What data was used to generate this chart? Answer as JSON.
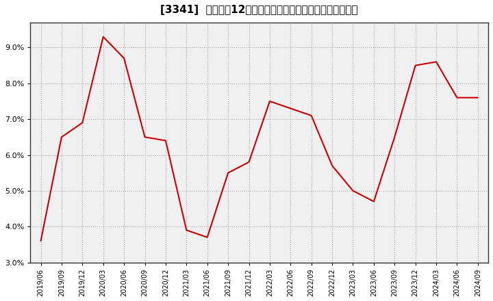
{
  "title": "[3341]  売上高の12か月移動合計の対前年同期増減率の推移",
  "line_color": "#cc0000",
  "background_color": "#ffffff",
  "plot_bg_color": "#f0f0f0",
  "grid_color": "#aaaaaa",
  "ylim": [
    0.03,
    0.097
  ],
  "yticks": [
    0.03,
    0.04,
    0.05,
    0.06,
    0.07,
    0.08,
    0.09
  ],
  "dates": [
    "2019/06",
    "2019/09",
    "2019/12",
    "2020/03",
    "2020/06",
    "2020/09",
    "2020/12",
    "2021/03",
    "2021/06",
    "2021/09",
    "2021/12",
    "2022/03",
    "2022/06",
    "2022/09",
    "2022/12",
    "2023/03",
    "2023/06",
    "2023/09",
    "2023/12",
    "2024/03",
    "2024/06",
    "2024/09"
  ],
  "values": [
    0.036,
    0.065,
    0.069,
    0.093,
    0.087,
    0.065,
    0.064,
    0.039,
    0.037,
    0.055,
    0.058,
    0.075,
    0.073,
    0.071,
    0.057,
    0.05,
    0.047,
    0.065,
    0.085,
    0.086,
    0.076,
    0.076
  ]
}
